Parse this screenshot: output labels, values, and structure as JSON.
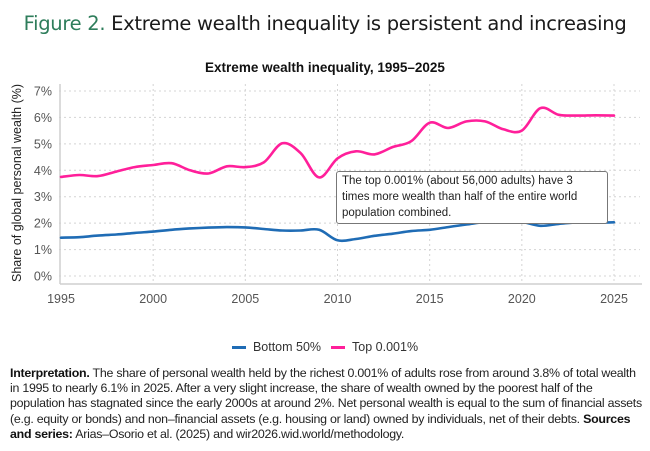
{
  "figure": {
    "number_label": "Figure 2.",
    "title": "Extreme wealth inequality is persistent and increasing",
    "accent_color": "#2e7d5b"
  },
  "annotation": {
    "text": "The top 0.001% (about 56,000 adults) have 3 times more wealth than half of the entire world population combined."
  },
  "note": {
    "interpretation_label": "Interpretation.",
    "interpretation_text": " The share of personal wealth held by the richest 0.001% of adults rose from around 3.8% of total wealth in 1995 to nearly 6.1% in 2025. After a very slight increase, the share of wealth owned by the poorest half of the population has stagnated since the early 2000s at around 2%. Net personal wealth is equal to the sum of financial assets (e.g. equity or bonds) and non–financial assets (e.g. housing or land) owned by individuals, net of their debts. ",
    "sources_label": "Sources and series:",
    "sources_text": " Arias–Osorio et al. (2025) and wir2026.wid.world/methodology."
  },
  "chart_data": {
    "type": "line",
    "title": "Extreme wealth inequality, 1995–2025",
    "xlabel": "",
    "ylabel": "Share of global personal wealth (%)",
    "xlim": [
      1995,
      2025
    ],
    "ylim": [
      0,
      7
    ],
    "x_ticks": [
      1995,
      2000,
      2005,
      2010,
      2015,
      2020,
      2025
    ],
    "x_tick_labels": [
      "1995",
      "2000",
      "2005",
      "2010",
      "2015",
      "2020",
      "2025"
    ],
    "y_ticks": [
      0,
      1,
      2,
      3,
      4,
      5,
      6,
      7
    ],
    "y_tick_labels": [
      "0%",
      "1%",
      "2%",
      "3%",
      "4%",
      "5%",
      "6%",
      "7%"
    ],
    "grid": "dotted horizontal and vertical",
    "legend_position": "bottom-center",
    "x": [
      1995,
      1996,
      1997,
      1998,
      1999,
      2000,
      2001,
      2002,
      2003,
      2004,
      2005,
      2006,
      2007,
      2008,
      2009,
      2010,
      2011,
      2012,
      2013,
      2014,
      2015,
      2016,
      2017,
      2018,
      2019,
      2020,
      2021,
      2022,
      2023,
      2024,
      2025
    ],
    "series": [
      {
        "name": "Bottom 50%",
        "color": "#1f6cb5",
        "values": [
          1.45,
          1.47,
          1.53,
          1.57,
          1.63,
          1.68,
          1.75,
          1.8,
          1.83,
          1.85,
          1.84,
          1.78,
          1.72,
          1.72,
          1.75,
          1.35,
          1.4,
          1.52,
          1.6,
          1.7,
          1.75,
          1.85,
          1.95,
          2.05,
          2.12,
          2.05,
          1.9,
          1.97,
          2.03,
          2.02,
          2.03
        ]
      },
      {
        "name": "Top 0.001%",
        "color": "#ff1f9a",
        "values": [
          3.75,
          3.82,
          3.78,
          3.95,
          4.12,
          4.2,
          4.27,
          4.0,
          3.88,
          4.15,
          4.12,
          4.3,
          5.02,
          4.65,
          3.73,
          4.45,
          4.72,
          4.6,
          4.88,
          5.1,
          5.8,
          5.6,
          5.85,
          5.85,
          5.55,
          5.5,
          6.35,
          6.1,
          6.07,
          6.08,
          6.07
        ]
      }
    ]
  }
}
